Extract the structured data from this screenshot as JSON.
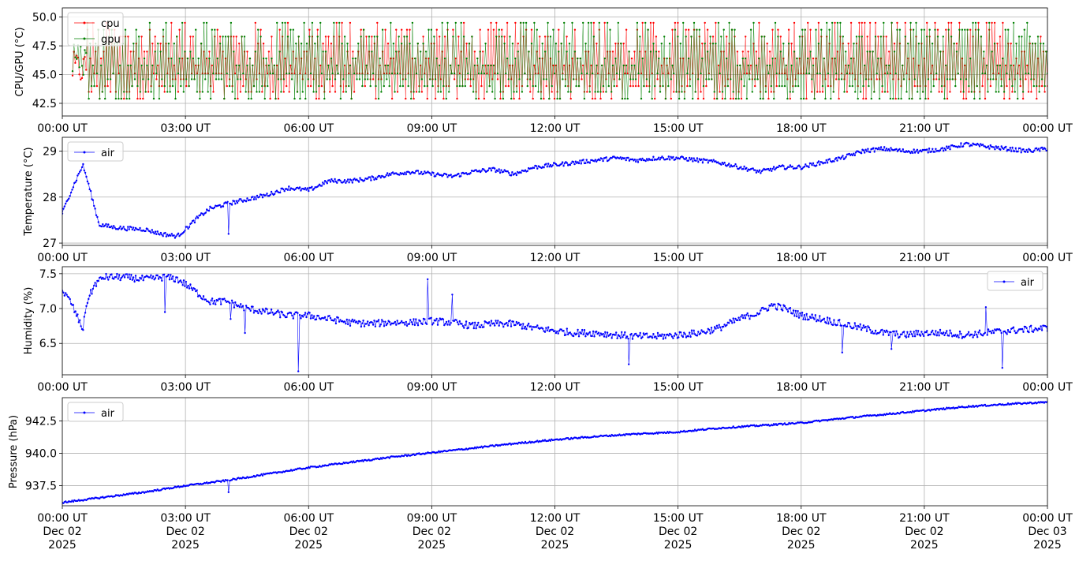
{
  "x_tick_labels": [
    "00:00 UT",
    "03:00 UT",
    "06:00 UT",
    "09:00 UT",
    "12:00 UT",
    "15:00 UT",
    "18:00 UT",
    "21:00 UT",
    "00:00 UT"
  ],
  "date_tick_labels": [
    "Dec 02",
    "Dec 02",
    "Dec 02",
    "Dec 02",
    "Dec 02",
    "Dec 02",
    "Dec 02",
    "Dec 02",
    "Dec 03"
  ],
  "year_tick_labels": [
    "2025",
    "2025",
    "2025",
    "2025",
    "2025",
    "2025",
    "2025",
    "2025",
    "2025"
  ],
  "chart_data": [
    {
      "type": "line",
      "ylabel": "CPU/GPU (°C)",
      "xlim": [
        "2025-12-02T00:00Z",
        "2025-12-03T00:00Z"
      ],
      "ylim": [
        41.4,
        50.8
      ],
      "yticks": [
        "42.5",
        "45.0",
        "47.5",
        "50.0"
      ],
      "grid": true,
      "legend": "upper-left",
      "series": [
        {
          "name": "cpu",
          "color": "#ff0000",
          "values_summary": "oscillates between about 42.5 and 49.5 °C, mean near 45.5"
        },
        {
          "name": "gpu",
          "color": "#008000",
          "values_summary": "oscillates between about 42.8 and 49.9 °C, mean near 45.5, peak 50.5 near 23:40 UT"
        }
      ]
    },
    {
      "type": "line",
      "ylabel": "Temperature (°C)",
      "xlim": [
        "2025-12-02T00:00Z",
        "2025-12-03T00:00Z"
      ],
      "ylim": [
        26.95,
        29.3
      ],
      "yticks": [
        "27",
        "28",
        "29"
      ],
      "grid": true,
      "legend": "upper-left",
      "series": [
        {
          "name": "air",
          "color": "#0000ff",
          "x_hours": [
            0,
            0.2,
            0.5,
            0.6,
            0.9,
            1.2,
            1.5,
            2.0,
            2.4,
            2.8,
            3.0,
            3.3,
            3.6,
            4.0,
            4.5,
            5.0,
            5.5,
            6.0,
            6.5,
            7.0,
            7.5,
            8.0,
            8.5,
            9.0,
            9.5,
            10.0,
            10.5,
            11.0,
            11.5,
            12.0,
            12.5,
            13.0,
            13.5,
            14.0,
            14.5,
            15.0,
            15.5,
            16.0,
            16.5,
            17.0,
            17.5,
            18.0,
            18.5,
            19.0,
            19.5,
            20.0,
            20.5,
            21.0,
            21.5,
            22.0,
            22.5,
            23.0,
            23.5,
            24.0
          ],
          "values": [
            27.65,
            28.1,
            28.7,
            28.4,
            27.4,
            27.35,
            27.32,
            27.3,
            27.2,
            27.15,
            27.3,
            27.55,
            27.75,
            27.85,
            27.95,
            28.05,
            28.2,
            28.15,
            28.35,
            28.35,
            28.4,
            28.5,
            28.55,
            28.5,
            28.45,
            28.55,
            28.6,
            28.5,
            28.65,
            28.7,
            28.75,
            28.8,
            28.85,
            28.8,
            28.85,
            28.85,
            28.8,
            28.75,
            28.65,
            28.55,
            28.65,
            28.65,
            28.75,
            28.85,
            29.0,
            29.05,
            29.0,
            29.0,
            29.05,
            29.15,
            29.1,
            29.05,
            29.0,
            29.05
          ]
        }
      ]
    },
    {
      "type": "line",
      "ylabel": "Humidity (%)",
      "xlim": [
        "2025-12-02T00:00Z",
        "2025-12-03T00:00Z"
      ],
      "ylim": [
        6.05,
        7.6
      ],
      "yticks": [
        "6.5",
        "7.0",
        "7.5"
      ],
      "grid": true,
      "legend": "upper-right",
      "series": [
        {
          "name": "air",
          "color": "#0000ff",
          "x_hours": [
            0,
            0.2,
            0.5,
            0.6,
            0.8,
            1.0,
            1.5,
            2.0,
            2.5,
            2.8,
            3.0,
            3.3,
            3.6,
            4.0,
            4.5,
            5.0,
            5.5,
            6.0,
            6.5,
            7.0,
            7.5,
            8.0,
            8.5,
            9.0,
            9.5,
            10.0,
            10.5,
            11.0,
            11.5,
            12.0,
            12.5,
            13.0,
            13.5,
            14.0,
            14.5,
            15.0,
            15.5,
            16.0,
            16.5,
            17.0,
            17.3,
            17.6,
            18.0,
            18.5,
            19.0,
            19.5,
            20.0,
            20.5,
            21.0,
            21.5,
            22.0,
            22.5,
            23.0,
            23.5,
            24.0
          ],
          "values": [
            7.25,
            7.1,
            6.7,
            7.1,
            7.35,
            7.45,
            7.45,
            7.42,
            7.45,
            7.42,
            7.35,
            7.22,
            7.1,
            7.1,
            7.0,
            6.95,
            6.9,
            6.9,
            6.85,
            6.8,
            6.78,
            6.8,
            6.8,
            6.82,
            6.8,
            6.75,
            6.78,
            6.78,
            6.72,
            6.68,
            6.65,
            6.65,
            6.62,
            6.6,
            6.6,
            6.62,
            6.65,
            6.72,
            6.85,
            6.95,
            7.05,
            7.0,
            6.9,
            6.85,
            6.78,
            6.72,
            6.65,
            6.62,
            6.65,
            6.65,
            6.62,
            6.65,
            6.68,
            6.7,
            6.72
          ]
        }
      ]
    },
    {
      "type": "line",
      "ylabel": "Pressure (hPa)",
      "xlim": [
        "2025-12-02T00:00Z",
        "2025-12-03T00:00Z"
      ],
      "ylim": [
        935.95,
        944.3
      ],
      "yticks": [
        "937.5",
        "940.0",
        "942.5"
      ],
      "grid": true,
      "legend": "upper-left",
      "series": [
        {
          "name": "air",
          "color": "#0000ff",
          "x_hours": [
            0,
            1,
            2,
            3,
            4,
            5,
            6,
            7,
            8,
            9,
            10,
            11,
            12,
            13,
            14,
            15,
            16,
            17,
            18,
            19,
            20,
            21,
            22,
            23,
            24
          ],
          "values": [
            936.2,
            936.6,
            937.0,
            937.5,
            937.9,
            938.4,
            938.9,
            939.3,
            939.7,
            940.05,
            940.4,
            940.75,
            941.05,
            941.3,
            941.5,
            941.65,
            941.95,
            942.15,
            942.35,
            942.7,
            943.0,
            943.3,
            943.6,
            943.8,
            943.95
          ]
        }
      ]
    }
  ]
}
